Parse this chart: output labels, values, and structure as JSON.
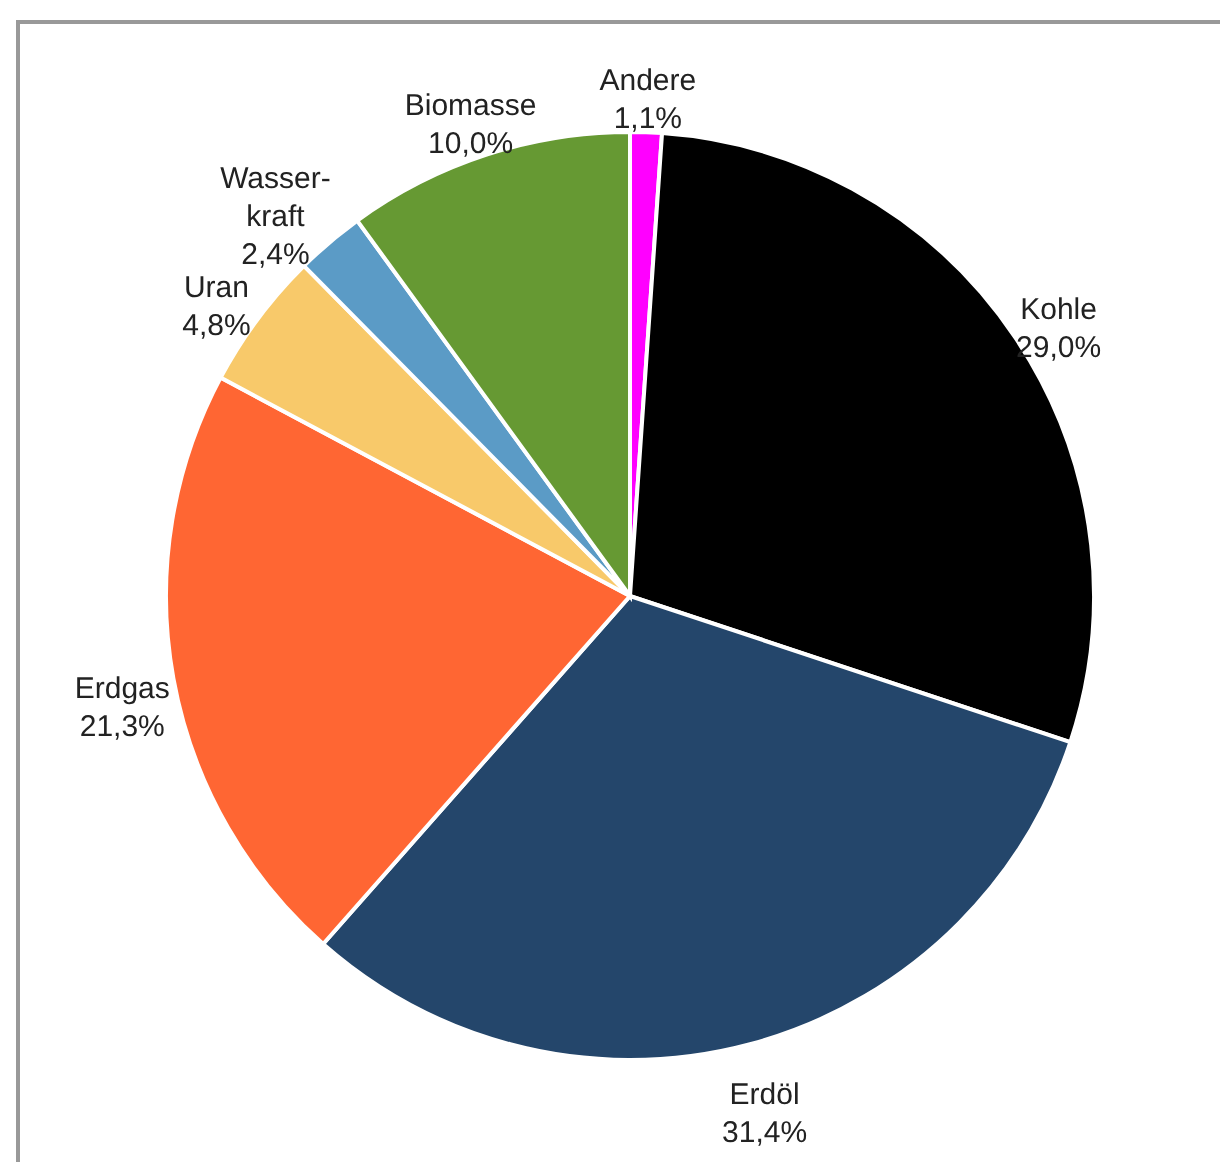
{
  "chart_data": {
    "type": "pie",
    "categories": [
      "Andere",
      "Kohle",
      "Erdöl",
      "Erdgas",
      "Uran",
      "Wasser-kraft",
      "Biomasse"
    ],
    "values": [
      1.1,
      29.0,
      31.4,
      21.3,
      4.8,
      2.4,
      10.0
    ],
    "value_labels": [
      "1,1%",
      "29,0%",
      "31,4%",
      "21,3%",
      "4,8%",
      "2,4%",
      "10,0%"
    ],
    "colors": [
      "#ff00ff",
      "#000000",
      "#24466b",
      "#ff6633",
      "#f8c96a",
      "#5b9bc6",
      "#669933"
    ]
  }
}
